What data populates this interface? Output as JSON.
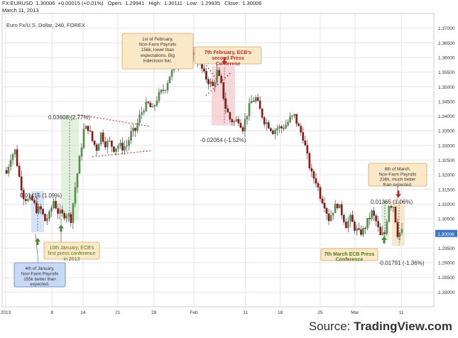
{
  "header": {
    "symbol": "FX:EURUSD",
    "last": "1.30006",
    "change": "+0.00015 (+0.01%)",
    "open_label": "Open:",
    "open": "1.29941",
    "high_label": "High:",
    "high": "1.30111",
    "low_label": "Low:",
    "low": "1.29935",
    "close_label": "Close:",
    "close": "1.30006",
    "date": "March 11, 2013"
  },
  "source": {
    "prefix": "Source: ",
    "brand": "TradingView.com"
  },
  "colors": {
    "up": "#5b8f54",
    "down": "#8b1a1a",
    "grid": "#e6e6e6",
    "price_badge": "#3877c8"
  },
  "chart_data": {
    "type": "candlestick",
    "title": "Euro Fx/U.S. Dollar, 240, FOREX",
    "ylim": [
      1.275,
      1.375
    ],
    "yticks": [
      "1.37000",
      "1.36500",
      "1.36000",
      "1.35500",
      "1.35000",
      "1.34500",
      "1.34000",
      "1.33500",
      "1.33000",
      "1.32500",
      "1.32000",
      "1.31500",
      "1.31000",
      "1.30500",
      "1.30000",
      "1.29500",
      "1.29000",
      "1.28500",
      "1.28000"
    ],
    "xticks": [
      "2013",
      "8",
      "14",
      "21",
      "28",
      "Feb",
      "11",
      "18",
      "25",
      "Mar",
      "11"
    ],
    "last_price": "1.30006",
    "close_path": [
      [
        0,
        1.3205
      ],
      [
        2,
        1.3262
      ],
      [
        4,
        1.3282
      ],
      [
        6,
        1.3192
      ],
      [
        8,
        1.3128
      ],
      [
        10,
        1.3111
      ],
      [
        12,
        1.3112
      ],
      [
        14,
        1.3082
      ],
      [
        16,
        1.308
      ],
      [
        18,
        1.3044
      ],
      [
        20,
        1.3062
      ],
      [
        22,
        1.3112
      ],
      [
        24,
        1.3074
      ],
      [
        26,
        1.3062
      ],
      [
        28,
        1.3068
      ],
      [
        30,
        1.305
      ],
      [
        32,
        1.3158
      ],
      [
        34,
        1.3252
      ],
      [
        36,
        1.3352
      ],
      [
        38,
        1.3362
      ],
      [
        40,
        1.3316
      ],
      [
        42,
        1.329
      ],
      [
        44,
        1.334
      ],
      [
        46,
        1.3308
      ],
      [
        48,
        1.331
      ],
      [
        50,
        1.329
      ],
      [
        52,
        1.33
      ],
      [
        54,
        1.3294
      ],
      [
        56,
        1.33
      ],
      [
        58,
        1.334
      ],
      [
        60,
        1.3352
      ],
      [
        62,
        1.3398
      ],
      [
        64,
        1.343
      ],
      [
        66,
        1.344
      ],
      [
        68,
        1.342
      ],
      [
        70,
        1.346
      ],
      [
        72,
        1.348
      ],
      [
        74,
        1.35
      ],
      [
        76,
        1.354
      ],
      [
        78,
        1.356
      ],
      [
        80,
        1.36
      ],
      [
        82,
        1.3654
      ],
      [
        84,
        1.3652
      ],
      [
        86,
        1.362
      ],
      [
        88,
        1.36
      ],
      [
        90,
        1.358
      ],
      [
        92,
        1.354
      ],
      [
        94,
        1.352
      ],
      [
        96,
        1.35
      ],
      [
        98,
        1.355
      ],
      [
        100,
        1.3504
      ],
      [
        102,
        1.343
      ],
      [
        104,
        1.339
      ],
      [
        106,
        1.338
      ],
      [
        108,
        1.339
      ],
      [
        110,
        1.336
      ],
      [
        112,
        1.341
      ],
      [
        114,
        1.345
      ],
      [
        116,
        1.346
      ],
      [
        118,
        1.342
      ],
      [
        120,
        1.3385
      ],
      [
        122,
        1.337
      ],
      [
        124,
        1.335
      ],
      [
        126,
        1.336
      ],
      [
        128,
        1.336
      ],
      [
        130,
        1.337
      ],
      [
        132,
        1.339
      ],
      [
        134,
        1.34
      ],
      [
        136,
        1.336
      ],
      [
        138,
        1.333
      ],
      [
        140,
        1.326
      ],
      [
        142,
        1.32
      ],
      [
        144,
        1.318
      ],
      [
        146,
        1.313
      ],
      [
        148,
        1.31
      ],
      [
        150,
        1.305
      ],
      [
        152,
        1.308
      ],
      [
        154,
        1.31
      ],
      [
        156,
        1.307
      ],
      [
        158,
        1.303
      ],
      [
        160,
        1.305
      ],
      [
        162,
        1.302
      ],
      [
        164,
        1.3
      ],
      [
        166,
        1.301
      ],
      [
        168,
        1.304
      ],
      [
        170,
        1.307
      ],
      [
        172,
        1.304
      ],
      [
        174,
        1.299
      ],
      [
        176,
        1.3
      ],
      [
        178,
        1.31
      ],
      [
        180,
        1.3095
      ],
      [
        182,
        1.3
      ],
      [
        184,
        1.3005
      ]
    ],
    "measurements": [
      {
        "label": "0.01415 (1.09%)"
      },
      {
        "label": "0.03608 (2.77%)"
      },
      {
        "label": "-0.02064 (-1.52%)"
      },
      {
        "label": "0.01365 (1.06%)"
      },
      {
        "label": "-0.01791 (-1.36%)"
      }
    ],
    "annotations": [
      {
        "text": "4th of January, Non-Farm Payrolls 155k better than expected."
      },
      {
        "text": "10th January, ECB's first press conference in 2013"
      },
      {
        "text": "1st of February, Non-Farm Payrolls 156k, lower than expectations. Big indecision bar."
      },
      {
        "text": "7th February, ECB's second Press Conferene"
      },
      {
        "text": "7th March ECB Press Conference"
      },
      {
        "text": "8th of March, Non-Farm Payrolls 236k, much better than expected."
      }
    ]
  }
}
